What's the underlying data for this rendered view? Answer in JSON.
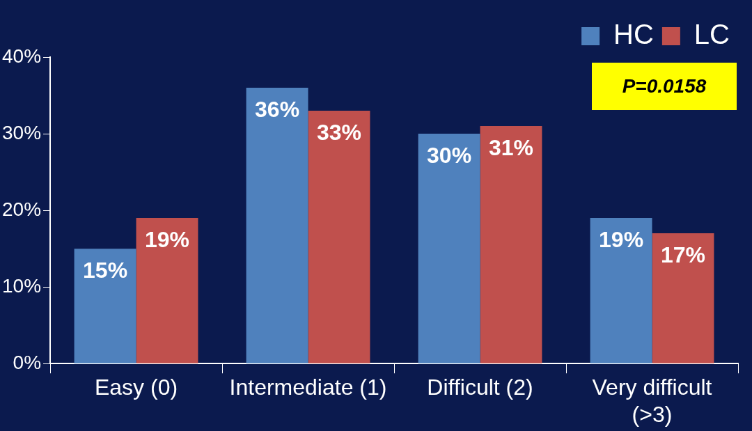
{
  "chart_data": {
    "type": "bar",
    "categories": [
      "Easy (0)",
      "Intermediate (1)",
      "Difficult (2)",
      "Very difficult (>3)"
    ],
    "series": [
      {
        "name": "HC",
        "color": "#4f81bd",
        "values": [
          15,
          36,
          30,
          19
        ],
        "value_labels": [
          "15%",
          "36%",
          "30%",
          "19%"
        ]
      },
      {
        "name": "LC",
        "color": "#c0504d",
        "values": [
          19,
          33,
          31,
          17
        ],
        "value_labels": [
          "19%",
          "33%",
          "31%",
          "17%"
        ]
      }
    ],
    "ylim": [
      0,
      40
    ],
    "yticks": [
      {
        "value": 0,
        "label": "0%"
      },
      {
        "value": 10,
        "label": "10%"
      },
      {
        "value": 20,
        "label": "20%"
      },
      {
        "value": 30,
        "label": "30%"
      },
      {
        "value": 40,
        "label": "40%"
      }
    ],
    "grid": false,
    "legend": "top right",
    "annotations": [
      "P=0.0158"
    ]
  }
}
